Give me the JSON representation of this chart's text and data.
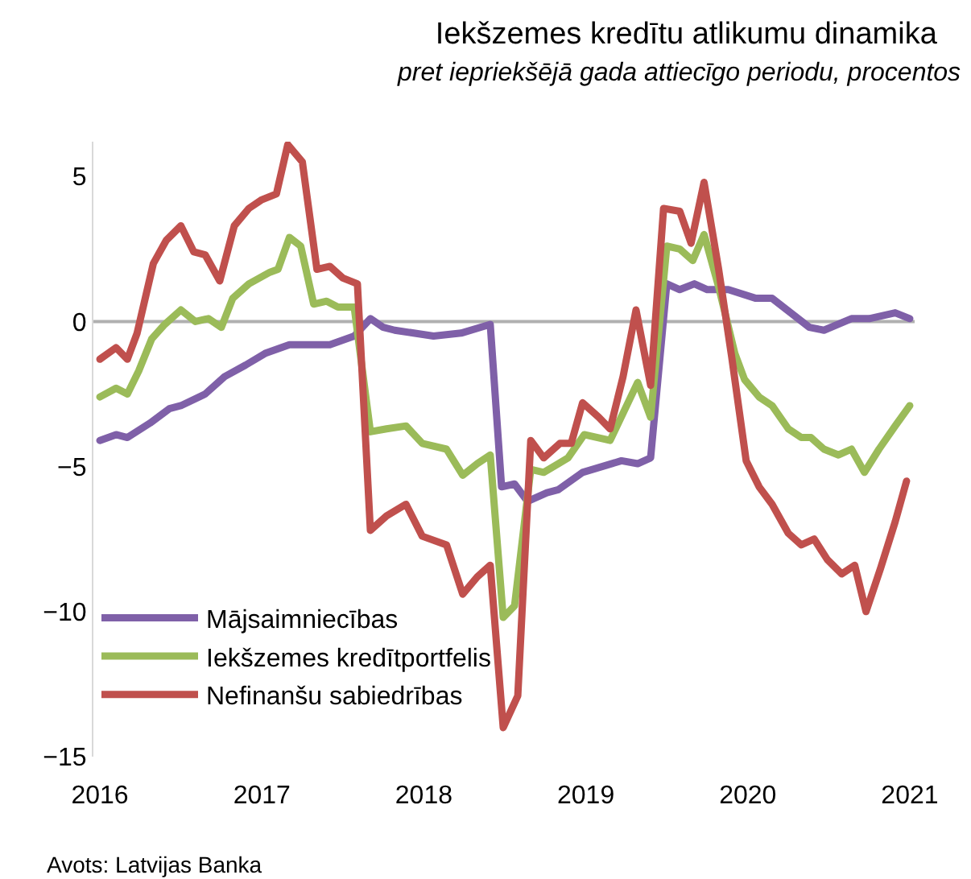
{
  "chart_data": {
    "type": "line",
    "title": "Iekšzemes kredītu atlikumu dinamika",
    "subtitle": "pret iepriekšējā gada attiecīgo periodu, procentos",
    "xlim": [
      2015.96,
      2021.03
    ],
    "xticks": [
      2016,
      2017,
      2018,
      2019,
      2020,
      2021
    ],
    "ylim": [
      -15,
      6.2
    ],
    "yticks": [
      -15,
      -10,
      -5,
      0,
      5
    ],
    "grid": false,
    "legend": "bottom left",
    "marker": "none",
    "line_style": "solid",
    "ref_lines": [
      {
        "axis": "y",
        "value": 0,
        "color": "#b0b0b0"
      }
    ],
    "annotations": [
      "Avots: Latvijas Banka"
    ],
    "series": [
      {
        "name": "Mājsaimniecības",
        "color": "#7f60a8",
        "x": [
          2016.0,
          2016.1,
          2016.17,
          2016.31,
          2016.43,
          2016.5,
          2016.65,
          2016.77,
          2016.9,
          2017.02,
          2017.17,
          2017.42,
          2017.57,
          2017.67,
          2017.75,
          2017.82,
          2018.06,
          2018.23,
          2018.41,
          2018.48,
          2018.56,
          2018.64,
          2018.76,
          2018.83,
          2018.98,
          2019.22,
          2019.32,
          2019.4,
          2019.5,
          2019.58,
          2019.67,
          2019.75,
          2019.88,
          2020.05,
          2020.15,
          2020.38,
          2020.47,
          2020.64,
          2020.75,
          2020.91,
          2021.0
        ],
        "values": [
          -4.1,
          -3.9,
          -4.0,
          -3.5,
          -3.0,
          -2.9,
          -2.5,
          -1.9,
          -1.5,
          -1.1,
          -0.8,
          -0.8,
          -0.5,
          0.1,
          -0.2,
          -0.3,
          -0.5,
          -0.4,
          -0.1,
          -5.7,
          -5.6,
          -6.2,
          -5.9,
          -5.8,
          -5.2,
          -4.8,
          -4.9,
          -4.7,
          1.3,
          1.1,
          1.3,
          1.1,
          1.1,
          0.8,
          0.8,
          -0.2,
          -0.3,
          0.1,
          0.1,
          0.3,
          0.1
        ]
      },
      {
        "name": "Iekšzemes kredītportfelis",
        "color": "#9bbb59",
        "x": [
          2016.0,
          2016.1,
          2016.17,
          2016.24,
          2016.32,
          2016.4,
          2016.5,
          2016.59,
          2016.67,
          2016.75,
          2016.82,
          2016.92,
          2017.05,
          2017.1,
          2017.17,
          2017.24,
          2017.32,
          2017.4,
          2017.47,
          2017.57,
          2017.67,
          2017.77,
          2017.89,
          2017.99,
          2018.14,
          2018.24,
          2018.33,
          2018.41,
          2018.49,
          2018.56,
          2018.66,
          2018.74,
          2018.83,
          2018.89,
          2018.99,
          2019.15,
          2019.32,
          2019.4,
          2019.5,
          2019.58,
          2019.66,
          2019.73,
          2019.82,
          2019.92,
          2019.98,
          2020.07,
          2020.15,
          2020.25,
          2020.33,
          2020.39,
          2020.47,
          2020.56,
          2020.64,
          2020.72,
          2020.81,
          2020.91,
          2021.0
        ],
        "values": [
          -2.6,
          -2.3,
          -2.5,
          -1.7,
          -0.6,
          -0.1,
          0.4,
          0.0,
          0.1,
          -0.2,
          0.8,
          1.3,
          1.7,
          1.8,
          2.9,
          2.6,
          0.6,
          0.7,
          0.5,
          0.5,
          -3.8,
          -3.7,
          -3.6,
          -4.2,
          -4.4,
          -5.3,
          -4.9,
          -4.6,
          -10.2,
          -9.8,
          -5.1,
          -5.2,
          -4.9,
          -4.7,
          -3.9,
          -4.1,
          -2.1,
          -3.3,
          2.6,
          2.5,
          2.1,
          3.0,
          1.2,
          -1.1,
          -2.0,
          -2.6,
          -2.9,
          -3.7,
          -4.0,
          -4.0,
          -4.4,
          -4.6,
          -4.4,
          -5.2,
          -4.4,
          -3.6,
          -2.9
        ]
      },
      {
        "name": "Nefinanšu sabiedrības",
        "color": "#c0504d",
        "x": [
          2016.0,
          2016.1,
          2016.17,
          2016.23,
          2016.33,
          2016.41,
          2016.5,
          2016.58,
          2016.65,
          2016.74,
          2016.83,
          2016.92,
          2017.0,
          2017.09,
          2017.16,
          2017.25,
          2017.34,
          2017.42,
          2017.5,
          2017.59,
          2017.67,
          2017.77,
          2017.89,
          2017.99,
          2018.14,
          2018.24,
          2018.33,
          2018.41,
          2018.49,
          2018.58,
          2018.66,
          2018.74,
          2018.84,
          2018.91,
          2018.98,
          2019.08,
          2019.15,
          2019.23,
          2019.31,
          2019.4,
          2019.48,
          2019.58,
          2019.65,
          2019.73,
          2019.82,
          2019.9,
          2019.99,
          2020.07,
          2020.15,
          2020.25,
          2020.33,
          2020.41,
          2020.49,
          2020.58,
          2020.66,
          2020.73,
          2020.82,
          2020.91,
          2020.98
        ],
        "values": [
          -1.3,
          -0.9,
          -1.3,
          -0.4,
          2.0,
          2.8,
          3.3,
          2.4,
          2.3,
          1.4,
          3.3,
          3.9,
          4.2,
          4.4,
          6.1,
          5.5,
          1.8,
          1.9,
          1.5,
          1.3,
          -7.2,
          -6.7,
          -6.3,
          -7.4,
          -7.7,
          -9.4,
          -8.8,
          -8.4,
          -14.0,
          -12.9,
          -4.1,
          -4.7,
          -4.2,
          -4.2,
          -2.8,
          -3.3,
          -3.7,
          -1.9,
          0.4,
          -2.2,
          3.9,
          3.8,
          2.7,
          4.8,
          1.8,
          -1.2,
          -4.8,
          -5.7,
          -6.3,
          -7.3,
          -7.7,
          -7.5,
          -8.2,
          -8.7,
          -8.4,
          -10.0,
          -8.5,
          -6.9,
          -5.5
        ]
      }
    ]
  }
}
